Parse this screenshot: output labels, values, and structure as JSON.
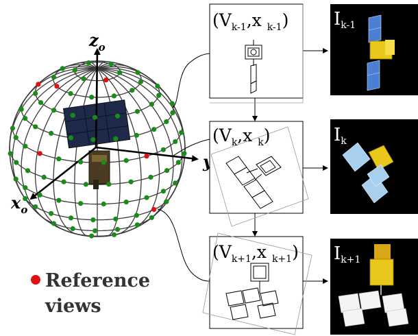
{
  "axes": {
    "z_main": "z",
    "z_sub": "o",
    "y_main": "y",
    "y_sub": "o",
    "x_main": "x",
    "x_sub": "o"
  },
  "legend": {
    "line1": "Reference",
    "line2": "views",
    "dot_color": "#e01010"
  },
  "sphere": {
    "point_color": "#1a8a1a",
    "reference_color": "#e01010",
    "grid_color": "#3a3a3a"
  },
  "views": [
    {
      "label_main": "(V",
      "label_sub1": "k-1",
      "label_sep": ",x ",
      "label_sub2": "k-1",
      "label_end": ")",
      "image_main": "I",
      "image_sub": "k-1"
    },
    {
      "label_main": "(V",
      "label_sub1": "k",
      "label_sep": ",x ",
      "label_sub2": "k",
      "label_end": ")",
      "image_main": "I",
      "image_sub": "k"
    },
    {
      "label_main": "(V",
      "label_sub1": "k+1",
      "label_sep": ",x ",
      "label_sub2": "k+1",
      "label_end": ")",
      "image_main": "I",
      "image_sub": "k+1"
    }
  ],
  "colors": {
    "panel_bg": "#000000",
    "panel_text": "#ffffff",
    "solar_blue": "#4a7fd4",
    "solar_light": "#a8d0ee",
    "solar_white": "#f4f4f4",
    "gold": "#e8c81a"
  }
}
